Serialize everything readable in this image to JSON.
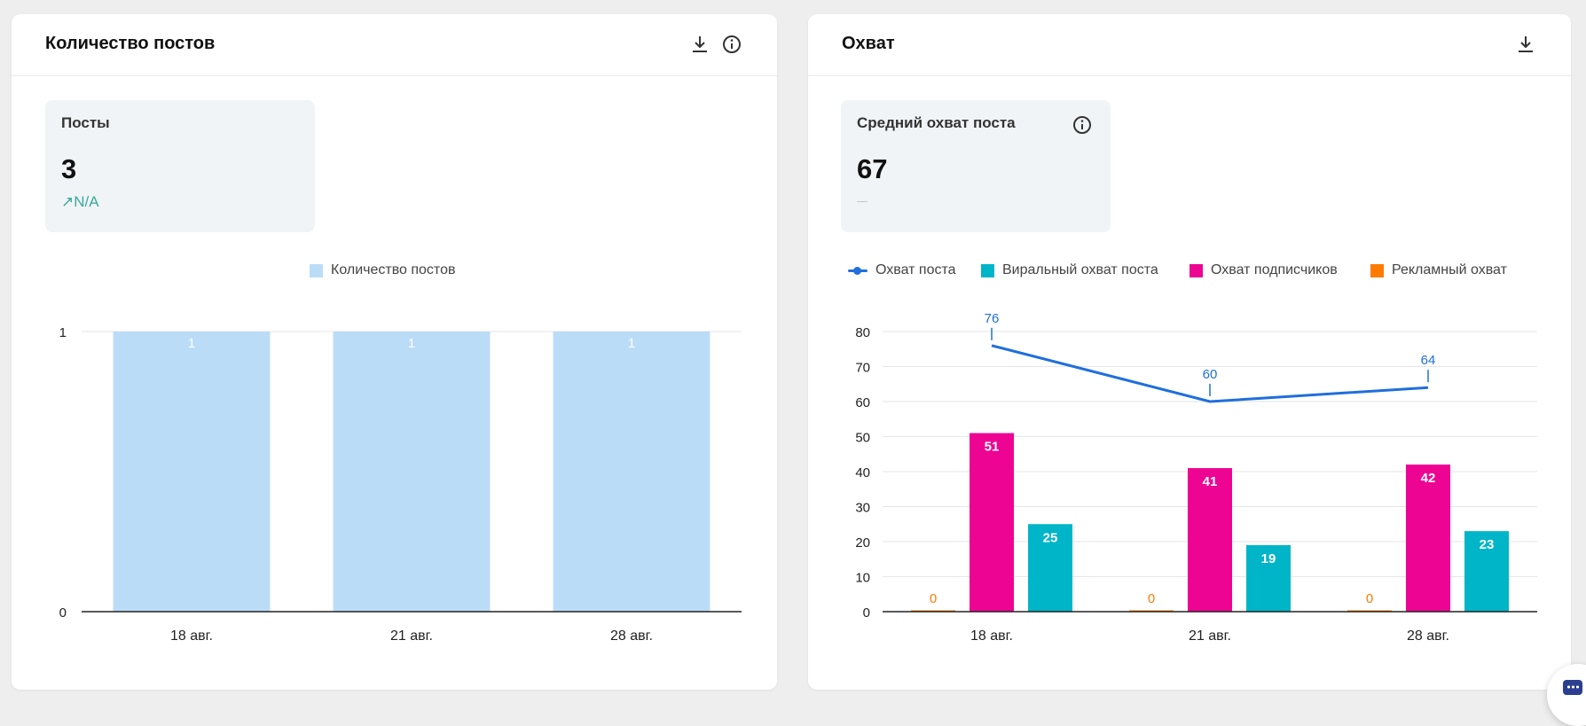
{
  "posts_card": {
    "title": "Количество постов",
    "icons": [
      "download-icon",
      "info-icon"
    ],
    "kpi": {
      "label": "Посты",
      "value": "3",
      "delta": "N/A",
      "delta_icon": "arrow-up-right-icon"
    },
    "legend": [
      "Количество постов"
    ],
    "colors": {
      "bar": "#bbdcf7",
      "bar_label": "#ffffff"
    }
  },
  "reach_card": {
    "title": "Охват",
    "icons": [
      "download-icon"
    ],
    "kpi": {
      "label": "Средний охват поста",
      "value": "67",
      "delta_icon": "info-icon"
    },
    "legend": [
      "Охват поста",
      "Виральный охват поста",
      "Охват подписчиков",
      "Рекламный охват"
    ],
    "colors": {
      "line": "#1f6fdc",
      "viral": "#00b5c8",
      "subscribers": "#ee0493",
      "ads": "#ff7a00"
    }
  },
  "chart_data": [
    {
      "type": "bar",
      "categories": [
        "18 авг.",
        "21 авг.",
        "28 авг."
      ],
      "series": [
        {
          "name": "Количество постов",
          "values": [
            1,
            1,
            1
          ]
        }
      ],
      "ylim": [
        0,
        1
      ],
      "yticks": [
        0,
        1
      ],
      "grid": true,
      "legend_position": "top-center"
    },
    {
      "type": "bar",
      "categories": [
        "18 авг.",
        "21 авг.",
        "28 авг."
      ],
      "series": [
        {
          "name": "Охват поста",
          "type": "line",
          "values": [
            76,
            60,
            64
          ]
        },
        {
          "name": "Рекламный охват",
          "values": [
            0,
            0,
            0
          ]
        },
        {
          "name": "Охват подписчиков",
          "values": [
            51,
            41,
            42
          ]
        },
        {
          "name": "Виральный охват поста",
          "values": [
            25,
            19,
            23
          ]
        }
      ],
      "ylim": [
        0,
        80
      ],
      "yticks": [
        0,
        10,
        20,
        30,
        40,
        50,
        60,
        70,
        80
      ],
      "grid": true,
      "legend_position": "top-left"
    }
  ]
}
